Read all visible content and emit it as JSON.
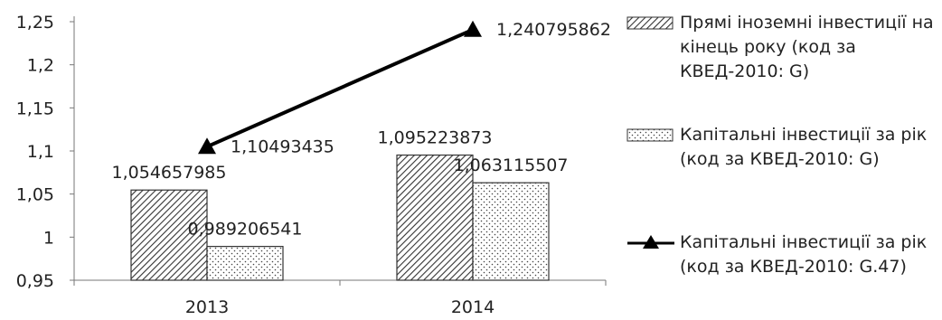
{
  "chart_data": {
    "type": "bar",
    "categories": [
      "2013",
      "2014"
    ],
    "series": [
      {
        "name": "Прямі іноземні інвестиції на кінець року (код за КВЕД-2010: G)",
        "kind": "bar",
        "pattern": "diagonal-hatch",
        "values": [
          1.054657985,
          1.095223873
        ],
        "labels": [
          "1,054657985",
          "1,095223873"
        ]
      },
      {
        "name": "Капітальні інвестиції за рік (код за КВЕД-2010: G)",
        "kind": "bar",
        "pattern": "dotted",
        "values": [
          0.989206541,
          1.063115507
        ],
        "labels": [
          "0,989206541",
          "1,063115507"
        ]
      },
      {
        "name": "Капітальні інвестиції за рік (код за КВЕД-2010: G.47)",
        "kind": "line",
        "marker": "triangle",
        "values": [
          1.10493435,
          1.240795862
        ],
        "labels": [
          "1,10493435",
          "1,240795862"
        ]
      }
    ],
    "yticks": [
      "0,95",
      "1",
      "1,05",
      "1,1",
      "1,15",
      "1,2",
      "1,25"
    ],
    "ylim": [
      0.95,
      1.25
    ],
    "grid": false,
    "legend_position": "right",
    "title": "",
    "xlabel": "",
    "ylabel": ""
  }
}
